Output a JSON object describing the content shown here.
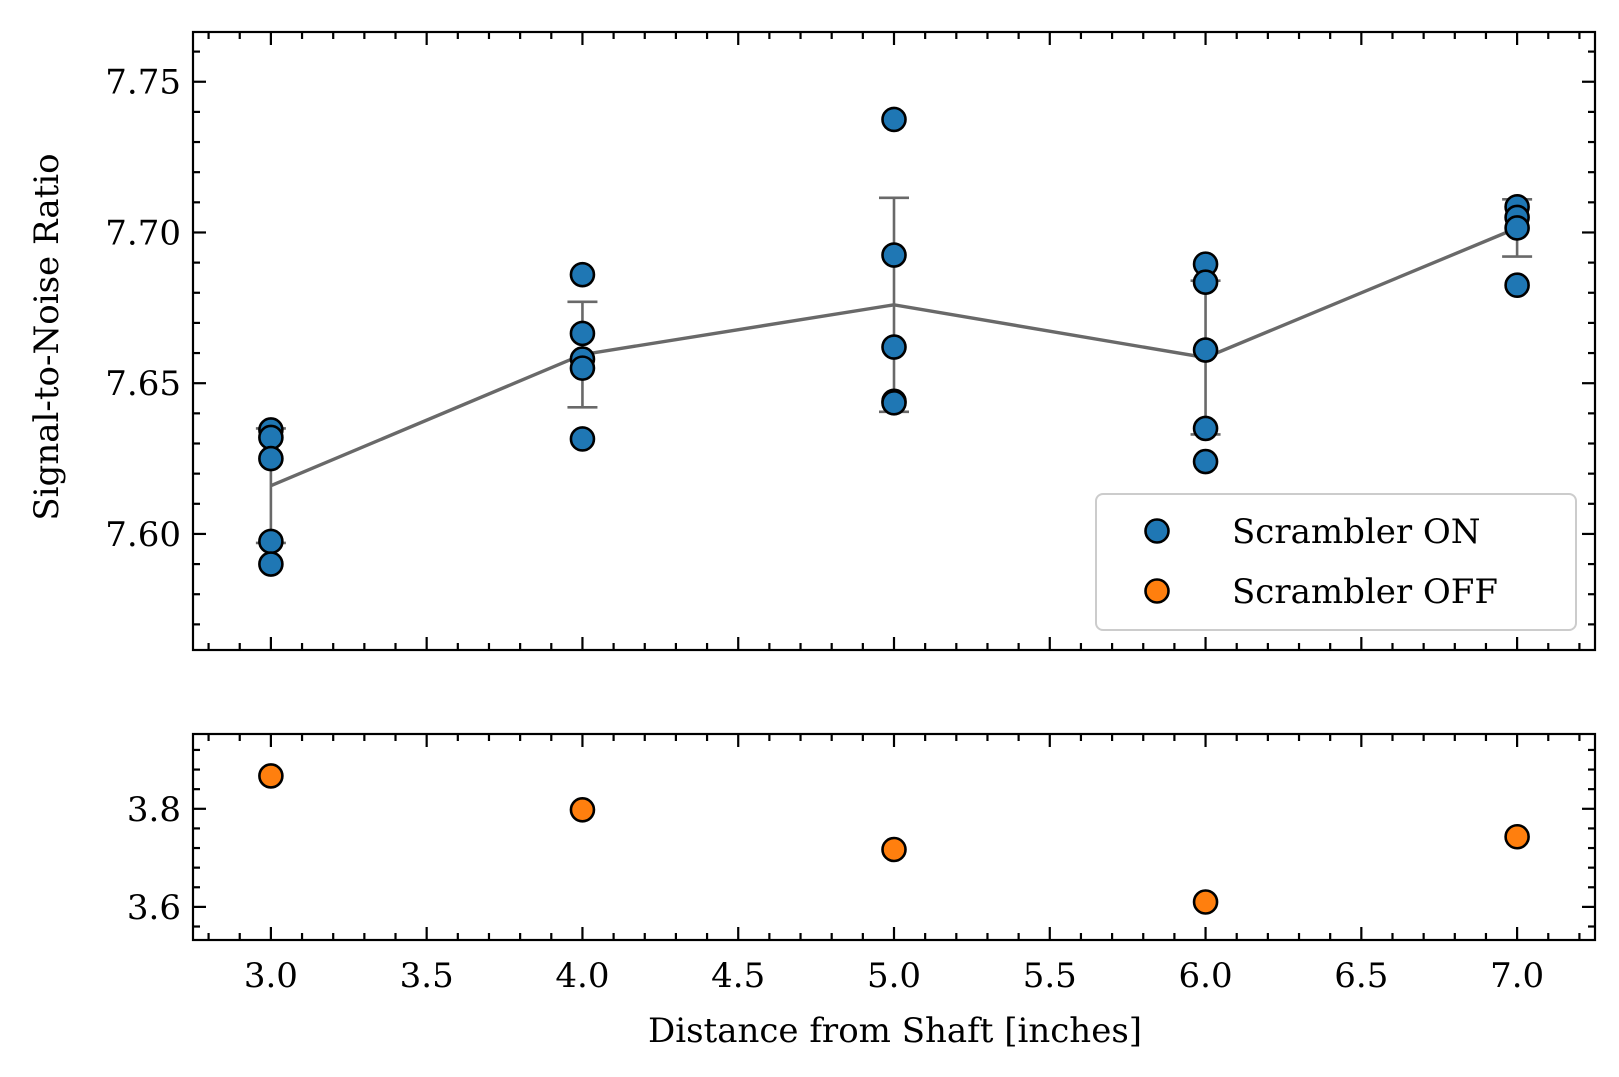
{
  "chart_data": [
    {
      "type": "scatter",
      "panel": "top",
      "title": "",
      "xlabel": "",
      "ylabel": "Signal-to-Noise Ratio",
      "xlim": [
        2.75,
        7.25
      ],
      "ylim": [
        7.5615,
        7.7665
      ],
      "xticks": [
        3.0,
        3.5,
        4.0,
        4.5,
        5.0,
        5.5,
        6.0,
        6.5,
        7.0
      ],
      "yticks": [
        7.6,
        7.65,
        7.7,
        7.75
      ],
      "ytick_labels": [
        "7.60",
        "7.65",
        "7.70",
        "7.75"
      ],
      "grid": false,
      "legend": {
        "placement": "lower right",
        "entries": [
          "Scrambler ON",
          "Scrambler OFF"
        ]
      },
      "series": [
        {
          "name": "Scrambler ON",
          "kind": "scatter",
          "color": "#1f77b4",
          "points": [
            [
              3.0,
              7.6345
            ],
            [
              3.0,
              7.632
            ],
            [
              3.0,
              7.625
            ],
            [
              3.0,
              7.5975
            ],
            [
              3.0,
              7.59
            ],
            [
              4.0,
              7.686
            ],
            [
              4.0,
              7.6665
            ],
            [
              4.0,
              7.658
            ],
            [
              4.0,
              7.655
            ],
            [
              4.0,
              7.6315
            ],
            [
              5.0,
              7.7375
            ],
            [
              5.0,
              7.6925
            ],
            [
              5.0,
              7.662
            ],
            [
              5.0,
              7.644
            ],
            [
              5.0,
              7.6435
            ],
            [
              6.0,
              7.6895
            ],
            [
              6.0,
              7.6835
            ],
            [
              6.0,
              7.661
            ],
            [
              6.0,
              7.635
            ],
            [
              6.0,
              7.624
            ],
            [
              7.0,
              7.7085
            ],
            [
              7.0,
              7.705
            ],
            [
              7.0,
              7.7015
            ],
            [
              7.0,
              7.6825
            ]
          ]
        },
        {
          "kind": "mean-line-with-errorbars",
          "color": "#696969",
          "x": [
            3.0,
            4.0,
            5.0,
            6.0,
            7.0
          ],
          "y": [
            7.616,
            7.6595,
            7.676,
            7.6585,
            7.7015
          ],
          "yerr": [
            0.019,
            0.0175,
            0.0355,
            0.0255,
            0.0095
          ]
        }
      ]
    },
    {
      "type": "scatter",
      "panel": "bottom",
      "title": "",
      "xlabel": "Distance from Shaft [inches]",
      "ylabel": "",
      "xlim": [
        2.75,
        7.25
      ],
      "ylim": [
        3.5325,
        3.9525
      ],
      "xticks": [
        3.0,
        3.5,
        4.0,
        4.5,
        5.0,
        5.5,
        6.0,
        6.5,
        7.0
      ],
      "xtick_labels": [
        "3.0",
        "3.5",
        "4.0",
        "4.5",
        "5.0",
        "5.5",
        "6.0",
        "6.5",
        "7.0"
      ],
      "yticks": [
        3.6,
        3.8
      ],
      "ytick_labels": [
        "3.6",
        "3.8"
      ],
      "grid": false,
      "series": [
        {
          "name": "Scrambler OFF",
          "kind": "scatter",
          "color": "#ff7f0e",
          "points": [
            [
              3.0,
              3.867
            ],
            [
              4.0,
              3.798
            ],
            [
              5.0,
              3.717
            ],
            [
              6.0,
              3.61
            ],
            [
              7.0,
              3.743
            ]
          ]
        }
      ]
    }
  ]
}
